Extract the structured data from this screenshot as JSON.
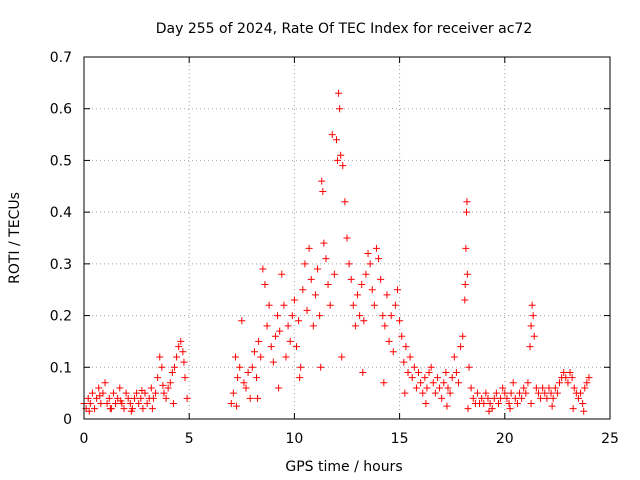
{
  "chart_data": {
    "type": "scatter",
    "title": "Day 255 of 2024, Rate Of TEC Index for receiver ac72",
    "xlabel": "GPS time / hours",
    "ylabel": "ROTI / TECUs",
    "xlim": [
      0,
      25
    ],
    "ylim": [
      0,
      0.7
    ],
    "xticks": [
      0,
      5,
      10,
      15,
      20,
      25
    ],
    "xtick_labels": [
      "0",
      "5",
      "10",
      "15",
      "20",
      "25"
    ],
    "yticks": [
      0,
      0.1,
      0.2,
      0.3,
      0.4,
      0.5,
      0.6,
      0.7
    ],
    "ytick_labels": [
      "0",
      "0.1",
      "0.2",
      "0.3",
      "0.4",
      "0.5",
      "0.6",
      "0.7"
    ],
    "grid": true,
    "marker": "plus",
    "color": "#ff0000",
    "series": [
      {
        "name": "",
        "points": [
          [
            0.0,
            0.03
          ],
          [
            0.1,
            0.02
          ],
          [
            0.2,
            0.04
          ],
          [
            0.3,
            0.03
          ],
          [
            0.4,
            0.05
          ],
          [
            0.5,
            0.02
          ],
          [
            0.6,
            0.04
          ],
          [
            0.7,
            0.06
          ],
          [
            0.8,
            0.03
          ],
          [
            0.9,
            0.05
          ],
          [
            1.0,
            0.07
          ],
          [
            1.1,
            0.03
          ],
          [
            1.2,
            0.04
          ],
          [
            1.3,
            0.02
          ],
          [
            1.4,
            0.05
          ],
          [
            1.5,
            0.03
          ],
          [
            1.6,
            0.04
          ],
          [
            1.7,
            0.06
          ],
          [
            1.8,
            0.03
          ],
          [
            1.9,
            0.02
          ],
          [
            2.0,
            0.05
          ],
          [
            2.1,
            0.04
          ],
          [
            2.2,
            0.03
          ],
          [
            2.3,
            0.02
          ],
          [
            2.4,
            0.04
          ],
          [
            2.5,
            0.05
          ],
          [
            2.6,
            0.03
          ],
          [
            2.7,
            0.04
          ],
          [
            2.8,
            0.02
          ],
          [
            2.9,
            0.05
          ],
          [
            3.0,
            0.03
          ],
          [
            3.1,
            0.04
          ],
          [
            3.2,
            0.06
          ],
          [
            3.3,
            0.04
          ],
          [
            3.4,
            0.05
          ],
          [
            3.5,
            0.08
          ],
          [
            3.6,
            0.12
          ],
          [
            3.7,
            0.1
          ],
          [
            3.8,
            0.05
          ],
          [
            3.9,
            0.04
          ],
          [
            4.0,
            0.06
          ],
          [
            4.1,
            0.07
          ],
          [
            4.2,
            0.09
          ],
          [
            4.3,
            0.1
          ],
          [
            4.4,
            0.12
          ],
          [
            4.5,
            0.14
          ],
          [
            4.6,
            0.15
          ],
          [
            4.7,
            0.13
          ],
          [
            4.8,
            0.08
          ],
          [
            4.9,
            0.04
          ],
          [
            0.25,
            0.015
          ],
          [
            1.25,
            0.02
          ],
          [
            2.25,
            0.015
          ],
          [
            3.25,
            0.02
          ],
          [
            4.25,
            0.03
          ],
          [
            0.75,
            0.045
          ],
          [
            1.75,
            0.035
          ],
          [
            2.75,
            0.055
          ],
          [
            3.75,
            0.065
          ],
          [
            4.75,
            0.11
          ],
          [
            7.0,
            0.03
          ],
          [
            7.1,
            0.05
          ],
          [
            7.2,
            0.12
          ],
          [
            7.3,
            0.08
          ],
          [
            7.4,
            0.1
          ],
          [
            7.5,
            0.19
          ],
          [
            7.6,
            0.07
          ],
          [
            7.7,
            0.06
          ],
          [
            7.8,
            0.09
          ],
          [
            7.9,
            0.04
          ],
          [
            8.0,
            0.1
          ],
          [
            8.1,
            0.13
          ],
          [
            8.2,
            0.08
          ],
          [
            8.3,
            0.15
          ],
          [
            8.4,
            0.12
          ],
          [
            8.5,
            0.29
          ],
          [
            8.6,
            0.26
          ],
          [
            8.7,
            0.18
          ],
          [
            8.8,
            0.22
          ],
          [
            8.9,
            0.14
          ],
          [
            9.0,
            0.11
          ],
          [
            9.1,
            0.16
          ],
          [
            9.2,
            0.2
          ],
          [
            9.3,
            0.17
          ],
          [
            9.4,
            0.28
          ],
          [
            9.5,
            0.22
          ],
          [
            9.6,
            0.12
          ],
          [
            9.7,
            0.18
          ],
          [
            9.8,
            0.15
          ],
          [
            9.9,
            0.2
          ],
          [
            10.0,
            0.23
          ],
          [
            10.1,
            0.14
          ],
          [
            10.2,
            0.19
          ],
          [
            10.3,
            0.1
          ],
          [
            10.4,
            0.25
          ],
          [
            10.5,
            0.3
          ],
          [
            10.6,
            0.21
          ],
          [
            10.7,
            0.33
          ],
          [
            10.8,
            0.27
          ],
          [
            10.9,
            0.18
          ],
          [
            11.0,
            0.24
          ],
          [
            11.1,
            0.29
          ],
          [
            11.2,
            0.2
          ],
          [
            11.3,
            0.46
          ],
          [
            11.35,
            0.44
          ],
          [
            11.4,
            0.34
          ],
          [
            11.5,
            0.31
          ],
          [
            11.6,
            0.26
          ],
          [
            11.7,
            0.22
          ],
          [
            11.8,
            0.55
          ],
          [
            11.9,
            0.28
          ],
          [
            12.0,
            0.54
          ],
          [
            12.05,
            0.5
          ],
          [
            12.1,
            0.63
          ],
          [
            12.15,
            0.6
          ],
          [
            12.2,
            0.51
          ],
          [
            12.3,
            0.49
          ],
          [
            12.4,
            0.42
          ],
          [
            12.5,
            0.35
          ],
          [
            12.6,
            0.3
          ],
          [
            12.7,
            0.27
          ],
          [
            12.8,
            0.22
          ],
          [
            12.9,
            0.18
          ],
          [
            13.0,
            0.24
          ],
          [
            13.1,
            0.2
          ],
          [
            13.2,
            0.26
          ],
          [
            13.3,
            0.19
          ],
          [
            13.4,
            0.28
          ],
          [
            13.5,
            0.32
          ],
          [
            13.6,
            0.3
          ],
          [
            13.7,
            0.25
          ],
          [
            13.8,
            0.22
          ],
          [
            13.9,
            0.33
          ],
          [
            14.0,
            0.31
          ],
          [
            14.1,
            0.27
          ],
          [
            14.2,
            0.2
          ],
          [
            14.3,
            0.18
          ],
          [
            14.4,
            0.24
          ],
          [
            14.5,
            0.15
          ],
          [
            14.6,
            0.2
          ],
          [
            14.7,
            0.13
          ],
          [
            14.8,
            0.22
          ],
          [
            14.9,
            0.25
          ],
          [
            15.0,
            0.19
          ],
          [
            15.1,
            0.16
          ],
          [
            15.2,
            0.11
          ],
          [
            15.3,
            0.14
          ],
          [
            15.4,
            0.09
          ],
          [
            15.5,
            0.12
          ],
          [
            15.6,
            0.08
          ],
          [
            15.7,
            0.1
          ],
          [
            15.8,
            0.06
          ],
          [
            15.9,
            0.09
          ],
          [
            16.0,
            0.07
          ],
          [
            16.1,
            0.05
          ],
          [
            16.2,
            0.08
          ],
          [
            16.3,
            0.06
          ],
          [
            16.4,
            0.09
          ],
          [
            16.5,
            0.1
          ],
          [
            16.6,
            0.07
          ],
          [
            16.7,
            0.05
          ],
          [
            16.8,
            0.08
          ],
          [
            16.9,
            0.06
          ],
          [
            17.0,
            0.04
          ],
          [
            17.1,
            0.07
          ],
          [
            17.2,
            0.09
          ],
          [
            17.3,
            0.06
          ],
          [
            17.4,
            0.05
          ],
          [
            17.5,
            0.08
          ],
          [
            17.6,
            0.12
          ],
          [
            17.7,
            0.09
          ],
          [
            17.8,
            0.07
          ],
          [
            17.9,
            0.14
          ],
          [
            18.0,
            0.16
          ],
          [
            18.1,
            0.23
          ],
          [
            18.12,
            0.26
          ],
          [
            18.15,
            0.33
          ],
          [
            18.18,
            0.4
          ],
          [
            18.2,
            0.42
          ],
          [
            18.22,
            0.28
          ],
          [
            18.3,
            0.1
          ],
          [
            18.4,
            0.06
          ],
          [
            18.5,
            0.04
          ],
          [
            18.6,
            0.03
          ],
          [
            18.7,
            0.05
          ],
          [
            18.8,
            0.03
          ],
          [
            18.9,
            0.04
          ],
          [
            19.0,
            0.03
          ],
          [
            19.1,
            0.05
          ],
          [
            19.2,
            0.04
          ],
          [
            19.3,
            0.03
          ],
          [
            19.4,
            0.02
          ],
          [
            19.5,
            0.04
          ],
          [
            19.6,
            0.05
          ],
          [
            19.7,
            0.03
          ],
          [
            19.8,
            0.04
          ],
          [
            19.9,
            0.06
          ],
          [
            20.0,
            0.05
          ],
          [
            20.1,
            0.04
          ],
          [
            20.2,
            0.03
          ],
          [
            20.3,
            0.05
          ],
          [
            20.4,
            0.07
          ],
          [
            20.5,
            0.04
          ],
          [
            20.6,
            0.03
          ],
          [
            20.7,
            0.05
          ],
          [
            20.8,
            0.04
          ],
          [
            20.9,
            0.06
          ],
          [
            21.0,
            0.05
          ],
          [
            21.1,
            0.07
          ],
          [
            21.2,
            0.14
          ],
          [
            21.25,
            0.18
          ],
          [
            21.3,
            0.22
          ],
          [
            21.35,
            0.2
          ],
          [
            21.4,
            0.16
          ],
          [
            21.5,
            0.06
          ],
          [
            21.6,
            0.05
          ],
          [
            21.7,
            0.04
          ],
          [
            21.8,
            0.06
          ],
          [
            21.9,
            0.05
          ],
          [
            22.0,
            0.04
          ],
          [
            22.1,
            0.06
          ],
          [
            22.2,
            0.05
          ],
          [
            22.3,
            0.04
          ],
          [
            22.4,
            0.06
          ],
          [
            22.5,
            0.05
          ],
          [
            22.6,
            0.07
          ],
          [
            22.7,
            0.08
          ],
          [
            22.8,
            0.09
          ],
          [
            22.9,
            0.08
          ],
          [
            23.0,
            0.07
          ],
          [
            23.1,
            0.09
          ],
          [
            23.2,
            0.08
          ],
          [
            23.3,
            0.06
          ],
          [
            23.4,
            0.05
          ],
          [
            23.5,
            0.04
          ],
          [
            23.6,
            0.05
          ],
          [
            23.7,
            0.03
          ],
          [
            23.8,
            0.06
          ],
          [
            23.9,
            0.07
          ],
          [
            24.0,
            0.08
          ],
          [
            7.25,
            0.025
          ],
          [
            8.25,
            0.04
          ],
          [
            9.25,
            0.06
          ],
          [
            10.25,
            0.08
          ],
          [
            11.25,
            0.1
          ],
          [
            12.25,
            0.12
          ],
          [
            13.25,
            0.09
          ],
          [
            14.25,
            0.07
          ],
          [
            15.25,
            0.05
          ],
          [
            16.25,
            0.03
          ],
          [
            17.25,
            0.025
          ],
          [
            18.25,
            0.02
          ],
          [
            19.25,
            0.015
          ],
          [
            20.25,
            0.02
          ],
          [
            21.25,
            0.03
          ],
          [
            22.25,
            0.025
          ],
          [
            23.25,
            0.02
          ],
          [
            23.75,
            0.015
          ]
        ]
      }
    ]
  }
}
